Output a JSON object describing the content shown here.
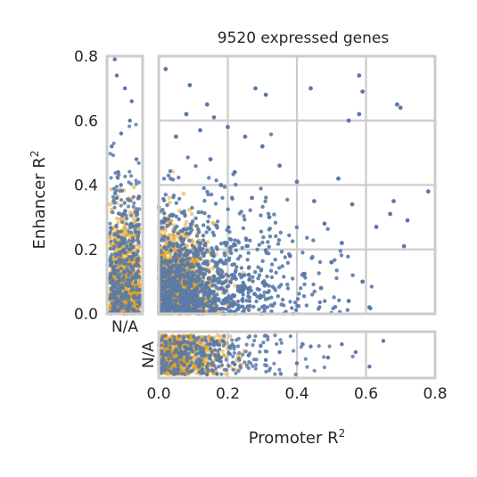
{
  "chart_data": {
    "type": "scatter",
    "title": "9520 expressed genes",
    "xlabel": "Promoter R",
    "xlabel_sup": "2",
    "ylabel": "Enhancer R",
    "ylabel_sup": "2",
    "xlim": [
      0,
      0.8
    ],
    "ylim": [
      0,
      0.8
    ],
    "x_ticks": [
      "0.0",
      "0.2",
      "0.4",
      "0.6",
      "0.8"
    ],
    "y_ticks": [
      "0.0",
      "0.2",
      "0.4",
      "0.6",
      "0.8"
    ],
    "na_label": "N/A",
    "grid": true,
    "colors": {
      "points": "#5a7aa8",
      "density": "#e2a11f",
      "frame": "#cccccc"
    },
    "main_points_sample": [
      [
        0.02,
        0.76
      ],
      [
        0.09,
        0.71
      ],
      [
        0.14,
        0.65
      ],
      [
        0.28,
        0.7
      ],
      [
        0.31,
        0.68
      ],
      [
        0.44,
        0.7
      ],
      [
        0.58,
        0.74
      ],
      [
        0.59,
        0.69
      ],
      [
        0.69,
        0.65
      ],
      [
        0.7,
        0.64
      ],
      [
        0.55,
        0.6
      ],
      [
        0.58,
        0.62
      ],
      [
        0.78,
        0.38
      ],
      [
        0.52,
        0.42
      ],
      [
        0.56,
        0.34
      ],
      [
        0.67,
        0.31
      ],
      [
        0.72,
        0.29
      ],
      [
        0.68,
        0.35
      ],
      [
        0.63,
        0.27
      ],
      [
        0.71,
        0.21
      ],
      [
        0.53,
        0.22
      ],
      [
        0.48,
        0.28
      ],
      [
        0.45,
        0.35
      ],
      [
        0.4,
        0.41
      ],
      [
        0.35,
        0.46
      ],
      [
        0.3,
        0.52
      ],
      [
        0.25,
        0.55
      ],
      [
        0.2,
        0.58
      ],
      [
        0.16,
        0.61
      ],
      [
        0.12,
        0.57
      ],
      [
        0.08,
        0.62
      ],
      [
        0.05,
        0.55
      ],
      [
        0.38,
        0.18
      ],
      [
        0.42,
        0.12
      ],
      [
        0.47,
        0.08
      ],
      [
        0.55,
        0.04
      ],
      [
        0.59,
        0.1
      ],
      [
        0.61,
        0.02
      ],
      [
        0.5,
        0.16
      ],
      [
        0.32,
        0.3
      ],
      [
        0.27,
        0.36
      ],
      [
        0.22,
        0.44
      ],
      [
        0.18,
        0.4
      ],
      [
        0.15,
        0.48
      ]
    ],
    "na_enhancer_points_sample": [
      [
        0.02,
        0.3
      ],
      [
        0.05,
        0.22
      ],
      [
        0.09,
        0.27
      ],
      [
        0.14,
        0.35
      ],
      [
        0.18,
        0.2
      ],
      [
        0.22,
        0.26
      ],
      [
        0.26,
        0.18
      ],
      [
        0.31,
        0.22
      ],
      [
        0.35,
        0.15
      ],
      [
        0.4,
        0.25
      ],
      [
        0.44,
        0.1
      ],
      [
        0.49,
        0.2
      ],
      [
        0.53,
        0.08
      ],
      [
        0.57,
        0.15
      ],
      [
        0.61,
        0.28
      ],
      [
        0.65,
        0.05
      ]
    ],
    "na_promoter_points_sample": [
      [
        0.79
      ],
      [
        0.74
      ],
      [
        0.7
      ],
      [
        0.66
      ],
      [
        0.6
      ],
      [
        0.56
      ],
      [
        0.52
      ],
      [
        0.48
      ],
      [
        0.44
      ],
      [
        0.4
      ],
      [
        0.36
      ],
      [
        0.32
      ],
      [
        0.28
      ],
      [
        0.24
      ],
      [
        0.2
      ],
      [
        0.16
      ],
      [
        0.12
      ],
      [
        0.08
      ],
      [
        0.04
      ]
    ]
  }
}
